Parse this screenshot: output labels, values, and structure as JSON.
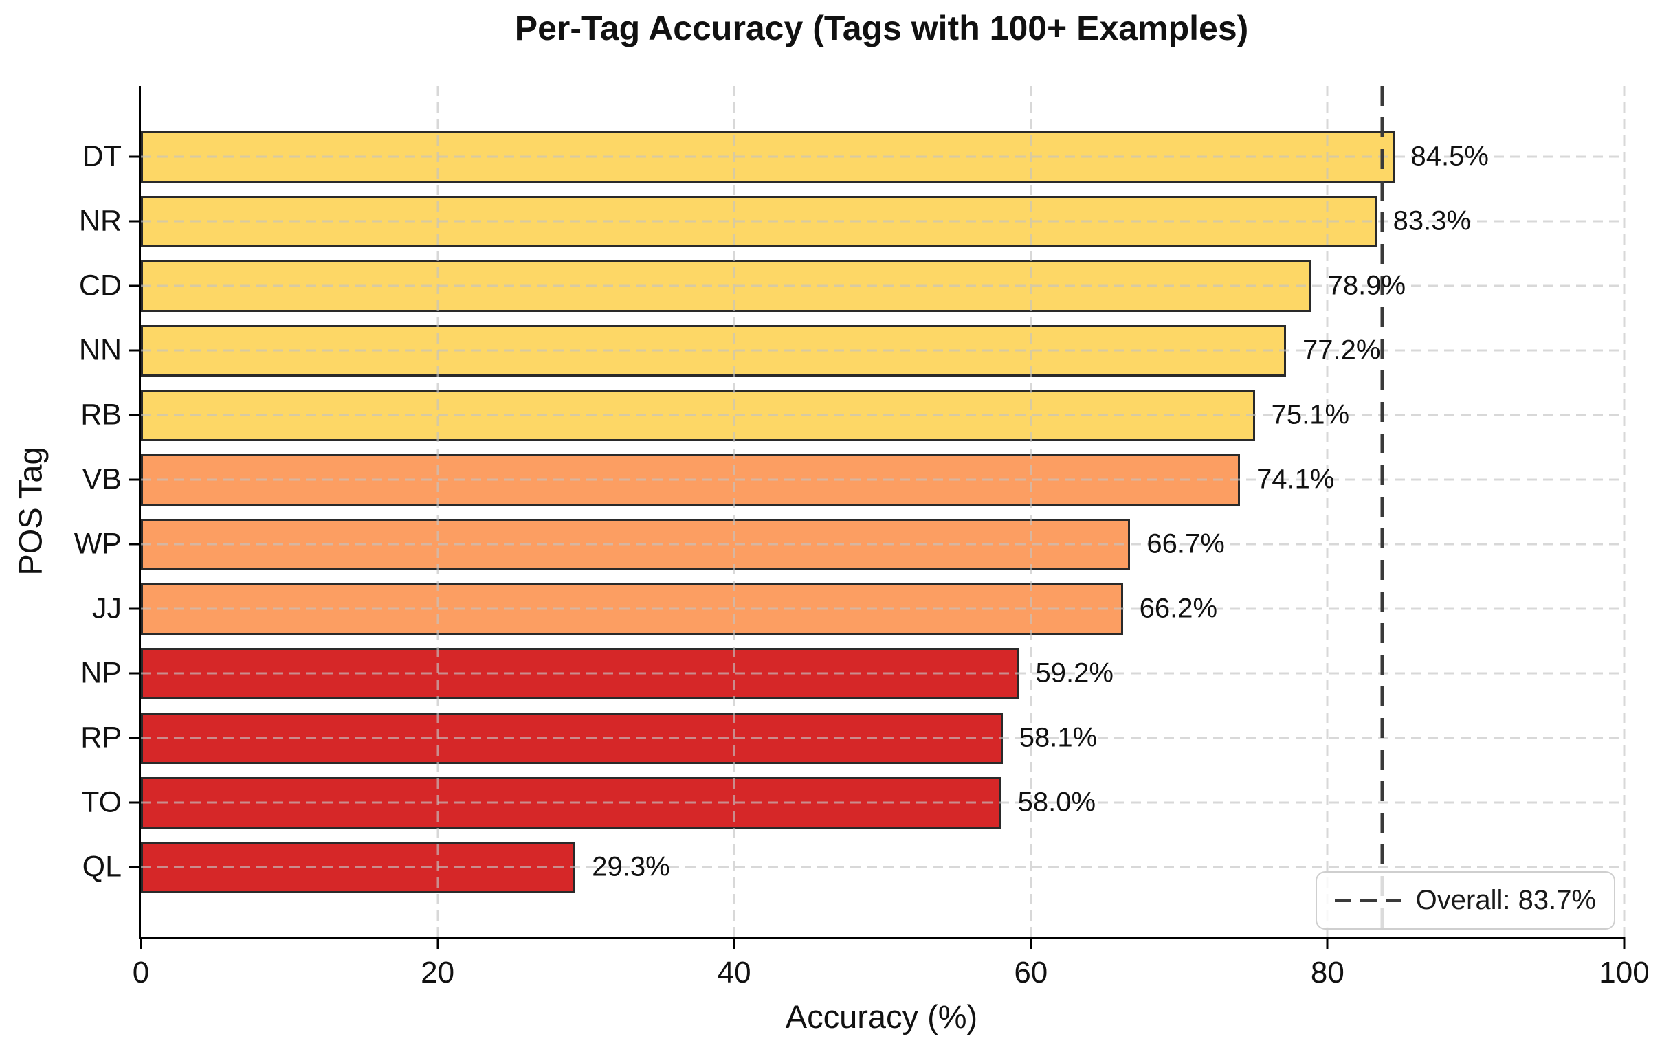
{
  "chart_data": {
    "type": "bar",
    "orientation": "horizontal",
    "title": "Per-Tag Accuracy (Tags with 100+ Examples)",
    "xlabel": "Accuracy (%)",
    "ylabel": "POS Tag",
    "xlim": [
      0,
      100
    ],
    "xticks": [
      0,
      20,
      40,
      60,
      80,
      100
    ],
    "grid": "dashed",
    "categories": [
      "DT",
      "NR",
      "CD",
      "NN",
      "RB",
      "VB",
      "WP",
      "JJ",
      "NP",
      "RP",
      "TO",
      "QL"
    ],
    "values": [
      84.5,
      83.3,
      78.9,
      77.2,
      75.1,
      74.1,
      66.7,
      66.2,
      59.2,
      58.1,
      58.0,
      29.3
    ],
    "value_labels": [
      "84.5%",
      "83.3%",
      "78.9%",
      "77.2%",
      "75.1%",
      "74.1%",
      "66.7%",
      "66.2%",
      "59.2%",
      "58.1%",
      "58.0%",
      "29.3%"
    ],
    "bar_colors": [
      "#FDD766",
      "#FDD766",
      "#FDD766",
      "#FDD766",
      "#FDD766",
      "#FC9E62",
      "#FC9E62",
      "#FC9E62",
      "#D62728",
      "#D62728",
      "#D62728",
      "#D62728"
    ],
    "overall_line": {
      "value": 83.7,
      "label": "Overall: 83.7%",
      "color": "#3A3A3A",
      "style": "dashed"
    },
    "legend": {
      "position": "lower right",
      "entries": [
        {
          "label": "Overall: 83.7%",
          "swatch": "dashed-line"
        }
      ]
    },
    "colors": {
      "tier_high": "#FDD766",
      "tier_mid": "#FC9E62",
      "tier_low": "#D62728",
      "bar_edge": "#2A2A2A",
      "grid": "#C3C3C3",
      "overall_line": "#3A3A3A",
      "background": "#FFFFFF"
    }
  }
}
